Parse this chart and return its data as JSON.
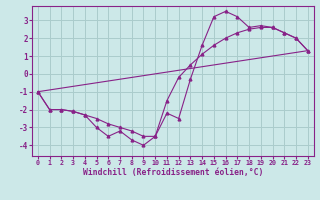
{
  "xlabel": "Windchill (Refroidissement éolien,°C)",
  "bg_color": "#cce8e8",
  "grid_color": "#aacccc",
  "line_color": "#882288",
  "xlim": [
    -0.5,
    23.5
  ],
  "ylim": [
    -4.6,
    3.8
  ],
  "xticks": [
    0,
    1,
    2,
    3,
    4,
    5,
    6,
    7,
    8,
    9,
    10,
    11,
    12,
    13,
    14,
    15,
    16,
    17,
    18,
    19,
    20,
    21,
    22,
    23
  ],
  "yticks": [
    -4,
    -3,
    -2,
    -1,
    0,
    1,
    2,
    3
  ],
  "line1_x": [
    0,
    1,
    2,
    3,
    4,
    5,
    6,
    7,
    8,
    9,
    10,
    11,
    12,
    13,
    14,
    15,
    16,
    17,
    18,
    19,
    20,
    21,
    22,
    23
  ],
  "line1_y": [
    -1.0,
    -2.0,
    -2.0,
    -2.1,
    -2.3,
    -3.0,
    -3.5,
    -3.2,
    -3.7,
    -4.0,
    -3.5,
    -2.2,
    -2.5,
    -0.3,
    1.6,
    3.2,
    3.5,
    3.2,
    2.6,
    2.7,
    2.6,
    2.3,
    2.0,
    1.3
  ],
  "line2_x": [
    0,
    1,
    2,
    3,
    4,
    5,
    6,
    7,
    8,
    9,
    10,
    11,
    12,
    13,
    14,
    15,
    16,
    17,
    18,
    19,
    20,
    21,
    22,
    23
  ],
  "line2_y": [
    -1.0,
    -2.0,
    -2.0,
    -2.1,
    -2.3,
    -2.5,
    -2.8,
    -3.0,
    -3.2,
    -3.5,
    -3.5,
    -1.5,
    -0.2,
    0.5,
    1.1,
    1.6,
    2.0,
    2.3,
    2.5,
    2.6,
    2.6,
    2.3,
    2.0,
    1.3
  ],
  "line3_x": [
    0,
    23
  ],
  "line3_y": [
    -1.0,
    1.3
  ]
}
